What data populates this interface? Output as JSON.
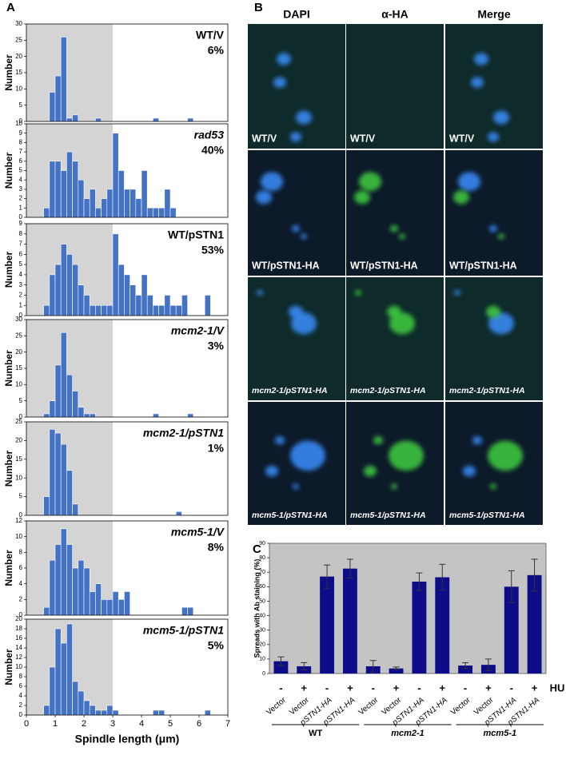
{
  "panel_a": {
    "letter": "A"
  },
  "panel_b": {
    "letter": "B",
    "columns": [
      "DAPI",
      "α-HA",
      "Merge"
    ],
    "rows": [
      [
        "WT/V",
        "WT/V",
        "WT/V"
      ],
      [
        "WT/pSTN1-HA",
        "WT/pSTN1-HA",
        "WT/pSTN1-HA"
      ],
      [
        "mcm2-1/pSTN1-HA",
        "mcm2-1/pSTN1-HA",
        "mcm2-1/pSTN1-HA"
      ],
      [
        "mcm5-1/pSTN1-HA",
        "mcm5-1/pSTN1-HA",
        "mcm5-1/pSTN1-HA"
      ]
    ]
  },
  "panel_c": {
    "letter": "C"
  },
  "chart_data": [
    {
      "type": "histogram",
      "label": "WT/V",
      "percent": "6%",
      "ylabel": "Number",
      "color": "#4472c4",
      "shaded_range": [
        0,
        3
      ],
      "bins": [
        0,
        0.2,
        0.4,
        0.6,
        0.8,
        1,
        1.2,
        1.4,
        1.6,
        1.8,
        2,
        2.2,
        2.4,
        2.6,
        2.8,
        3,
        3.2,
        3.4,
        3.6,
        3.8,
        4,
        4.2,
        4.4,
        4.6,
        4.8,
        5,
        5.2,
        5.4,
        5.6,
        5.8,
        6,
        6.2,
        6.4,
        6.6,
        6.8,
        7
      ],
      "counts": [
        0,
        0,
        0,
        0,
        9,
        14,
        26,
        1,
        2,
        0,
        0,
        0,
        1,
        0,
        0,
        0,
        0,
        0,
        0,
        0,
        0,
        0,
        1,
        0,
        0,
        0,
        0,
        0,
        1,
        0,
        0,
        0,
        0,
        0,
        0
      ],
      "xlim": [
        0,
        7
      ],
      "ylim": [
        0,
        30
      ],
      "yticks": [
        0,
        5,
        10,
        15,
        20,
        25,
        30
      ]
    },
    {
      "type": "histogram",
      "label": "rad53",
      "percent": "40%",
      "ylabel": "Number",
      "color": "#4472c4",
      "shaded_range": [
        0,
        3
      ],
      "bins": [
        0,
        0.2,
        0.4,
        0.6,
        0.8,
        1,
        1.2,
        1.4,
        1.6,
        1.8,
        2,
        2.2,
        2.4,
        2.6,
        2.8,
        3,
        3.2,
        3.4,
        3.6,
        3.8,
        4,
        4.2,
        4.4,
        4.6,
        4.8,
        5,
        5.2,
        5.4,
        5.6,
        5.8,
        6,
        6.2,
        6.4,
        6.6,
        6.8,
        7
      ],
      "counts": [
        0,
        0,
        0,
        1,
        6,
        6,
        5,
        7,
        6,
        4,
        2,
        3,
        1,
        2,
        3,
        9,
        5,
        3,
        3,
        2,
        5,
        1,
        1,
        1,
        3,
        1,
        0,
        0,
        0,
        0,
        0,
        0,
        0,
        0,
        0
      ],
      "xlim": [
        0,
        7
      ],
      "ylim": [
        0,
        10
      ],
      "yticks": [
        0,
        1,
        2,
        3,
        4,
        5,
        6,
        7,
        8,
        9,
        10
      ]
    },
    {
      "type": "histogram",
      "label": "WT/pSTN1",
      "percent": "53%",
      "ylabel": "Number",
      "color": "#4472c4",
      "shaded_range": [
        0,
        3
      ],
      "bins": [
        0,
        0.2,
        0.4,
        0.6,
        0.8,
        1,
        1.2,
        1.4,
        1.6,
        1.8,
        2,
        2.2,
        2.4,
        2.6,
        2.8,
        3,
        3.2,
        3.4,
        3.6,
        3.8,
        4,
        4.2,
        4.4,
        4.6,
        4.8,
        5,
        5.2,
        5.4,
        5.6,
        5.8,
        6,
        6.2,
        6.4,
        6.6,
        6.8,
        7
      ],
      "counts": [
        0,
        0,
        0,
        1,
        4,
        5,
        7,
        6,
        5,
        3,
        2,
        1,
        1,
        1,
        1,
        8,
        5,
        4,
        3,
        2,
        4,
        2,
        1,
        1,
        2,
        1,
        1,
        2,
        0,
        0,
        0,
        2,
        0,
        0,
        0
      ],
      "xlim": [
        0,
        7
      ],
      "ylim": [
        0,
        9
      ],
      "yticks": [
        0,
        1,
        2,
        3,
        4,
        5,
        6,
        7,
        8,
        9
      ]
    },
    {
      "type": "histogram",
      "label": "mcm2-1/V",
      "percent": "3%",
      "ylabel": "Number",
      "color": "#4472c4",
      "shaded_range": [
        0,
        3
      ],
      "bins": [
        0,
        0.2,
        0.4,
        0.6,
        0.8,
        1,
        1.2,
        1.4,
        1.6,
        1.8,
        2,
        2.2,
        2.4,
        2.6,
        2.8,
        3,
        3.2,
        3.4,
        3.6,
        3.8,
        4,
        4.2,
        4.4,
        4.6,
        4.8,
        5,
        5.2,
        5.4,
        5.6,
        5.8,
        6,
        6.2,
        6.4,
        6.6,
        6.8,
        7
      ],
      "counts": [
        0,
        0,
        0,
        1,
        5,
        16,
        26,
        13,
        8,
        3,
        1,
        1,
        0,
        0,
        0,
        0,
        0,
        0,
        0,
        0,
        0,
        0,
        1,
        0,
        0,
        0,
        0,
        0,
        1,
        0,
        0,
        0,
        0,
        0,
        0
      ],
      "xlim": [
        0,
        7
      ],
      "ylim": [
        0,
        30
      ],
      "yticks": [
        0,
        5,
        10,
        15,
        20,
        25,
        30
      ]
    },
    {
      "type": "histogram",
      "label": "mcm2-1/pSTN1",
      "percent": "1%",
      "ylabel": "Number",
      "color": "#4472c4",
      "shaded_range": [
        0,
        3
      ],
      "bins": [
        0,
        0.2,
        0.4,
        0.6,
        0.8,
        1,
        1.2,
        1.4,
        1.6,
        1.8,
        2,
        2.2,
        2.4,
        2.6,
        2.8,
        3,
        3.2,
        3.4,
        3.6,
        3.8,
        4,
        4.2,
        4.4,
        4.6,
        4.8,
        5,
        5.2,
        5.4,
        5.6,
        5.8,
        6,
        6.2,
        6.4,
        6.6,
        6.8,
        7
      ],
      "counts": [
        0,
        0,
        0,
        5,
        23,
        22,
        19,
        12,
        3,
        0,
        0,
        0,
        0,
        0,
        0,
        0,
        0,
        0,
        0,
        0,
        0,
        0,
        0,
        0,
        0,
        0,
        1,
        0,
        0,
        0,
        0,
        0,
        0,
        0,
        0
      ],
      "xlim": [
        0,
        7
      ],
      "ylim": [
        0,
        25
      ],
      "yticks": [
        0,
        5,
        10,
        15,
        20,
        25
      ]
    },
    {
      "type": "histogram",
      "label": "mcm5-1/V",
      "percent": "8%",
      "ylabel": "Number",
      "color": "#4472c4",
      "shaded_range": [
        0,
        3
      ],
      "bins": [
        0,
        0.2,
        0.4,
        0.6,
        0.8,
        1,
        1.2,
        1.4,
        1.6,
        1.8,
        2,
        2.2,
        2.4,
        2.6,
        2.8,
        3,
        3.2,
        3.4,
        3.6,
        3.8,
        4,
        4.2,
        4.4,
        4.6,
        4.8,
        5,
        5.2,
        5.4,
        5.6,
        5.8,
        6,
        6.2,
        6.4,
        6.6,
        6.8,
        7
      ],
      "counts": [
        0,
        0,
        0,
        1,
        7,
        9,
        11,
        9,
        6,
        7,
        6,
        3,
        4,
        2,
        2,
        3,
        2,
        3,
        0,
        0,
        0,
        0,
        0,
        0,
        0,
        0,
        0,
        1,
        1,
        0,
        0,
        0,
        0,
        0,
        0
      ],
      "xlim": [
        0,
        7
      ],
      "ylim": [
        0,
        12
      ],
      "yticks": [
        0,
        2,
        4,
        6,
        8,
        10,
        12
      ]
    },
    {
      "type": "histogram",
      "label": "mcm5-1/pSTN1",
      "percent": "5%",
      "ylabel": "Number",
      "color": "#4472c4",
      "shaded_range": [
        0,
        3
      ],
      "bins": [
        0,
        0.2,
        0.4,
        0.6,
        0.8,
        1,
        1.2,
        1.4,
        1.6,
        1.8,
        2,
        2.2,
        2.4,
        2.6,
        2.8,
        3,
        3.2,
        3.4,
        3.6,
        3.8,
        4,
        4.2,
        4.4,
        4.6,
        4.8,
        5,
        5.2,
        5.4,
        5.6,
        5.8,
        6,
        6.2,
        6.4,
        6.6,
        6.8,
        7
      ],
      "counts": [
        0,
        0,
        0,
        2,
        10,
        18,
        15,
        19,
        7,
        5,
        3,
        2,
        1,
        1,
        2,
        1,
        0,
        0,
        0,
        0,
        0,
        0,
        1,
        1,
        0,
        0,
        0,
        0,
        0,
        0,
        0,
        1,
        0,
        0,
        0
      ],
      "xlim": [
        0,
        7
      ],
      "ylim": [
        0,
        20
      ],
      "yticks": [
        0,
        2,
        4,
        6,
        8,
        10,
        12,
        14,
        16,
        18,
        20
      ],
      "xticks": [
        0,
        1,
        2,
        3,
        4,
        5,
        6,
        7
      ],
      "xlabel": "Spindle length (μm)"
    },
    {
      "type": "bar",
      "ylabel": "Spreads with Ab staining (%)",
      "color": "#0d0d8a",
      "background": "#c4c4c4",
      "categories": [
        "Vector",
        "Vector",
        "pSTN1-HA",
        "pSTN1-HA",
        "Vector",
        "Vector",
        "pSTN1-HA",
        "pSTN1-HA",
        "Vector",
        "Vector",
        "pSTN1-HA",
        "pSTN1-HA"
      ],
      "hu": [
        "-",
        "+",
        "-",
        "+",
        "-",
        "+",
        "-",
        "+",
        "-",
        "+",
        "-",
        "+"
      ],
      "hu_label": "HU",
      "groups": [
        "WT",
        "mcm2-1",
        "mcm5-1"
      ],
      "values": [
        8.5,
        5,
        67,
        72.5,
        5,
        3.5,
        63.5,
        66.5,
        5.5,
        6,
        60,
        68
      ],
      "errors": [
        3,
        2.5,
        8,
        6.5,
        4,
        1,
        6,
        9,
        2,
        4,
        11,
        11
      ],
      "ylim": [
        0,
        90
      ],
      "yticks": [
        0,
        10,
        20,
        30,
        40,
        50,
        60,
        70,
        80,
        90
      ]
    }
  ]
}
